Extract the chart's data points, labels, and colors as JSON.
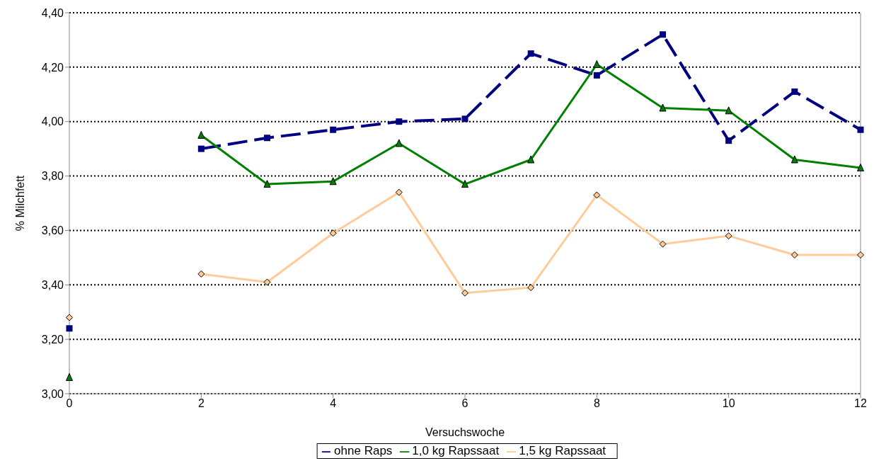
{
  "chart_data": {
    "type": "line",
    "xlabel": "Versuchswoche",
    "ylabel": "% Milchfett",
    "x": [
      0,
      1,
      2,
      3,
      4,
      5,
      6,
      7,
      8,
      9,
      10,
      11,
      12
    ],
    "series": [
      {
        "name": "ohne Raps",
        "color": "#000080",
        "marker": "square",
        "line_style": "dashed",
        "values": [
          3.24,
          null,
          3.9,
          3.94,
          3.97,
          4.0,
          4.01,
          4.25,
          4.17,
          4.32,
          3.93,
          4.11,
          3.97
        ]
      },
      {
        "name": "1,0 kg Rapssaat",
        "color": "#008000",
        "marker": "triangle",
        "line_style": "solid",
        "values": [
          3.06,
          null,
          3.95,
          3.77,
          3.78,
          3.92,
          3.77,
          3.86,
          4.21,
          4.05,
          4.04,
          3.86,
          3.83
        ]
      },
      {
        "name": "1,5 kg Rapssaat",
        "color": "#ffcc99",
        "marker": "diamond",
        "line_style": "solid",
        "values": [
          3.28,
          null,
          3.44,
          3.41,
          3.59,
          3.74,
          3.37,
          3.39,
          3.73,
          3.55,
          3.58,
          3.51,
          3.51
        ]
      }
    ],
    "xlim": [
      0,
      12
    ],
    "xticks": [
      0,
      2,
      4,
      6,
      8,
      10,
      12
    ],
    "ylim": [
      3.0,
      4.4
    ],
    "yticks": [
      {
        "value": 3.0,
        "label": "3,00"
      },
      {
        "value": 3.2,
        "label": "3,20"
      },
      {
        "value": 3.4,
        "label": "3,40"
      },
      {
        "value": 3.6,
        "label": "3,60"
      },
      {
        "value": 3.8,
        "label": "3,80"
      },
      {
        "value": 4.0,
        "label": "4,00"
      },
      {
        "value": 4.2,
        "label": "4,20"
      },
      {
        "value": 4.4,
        "label": "4,40"
      }
    ],
    "grid": "y",
    "legend": "bottom"
  }
}
